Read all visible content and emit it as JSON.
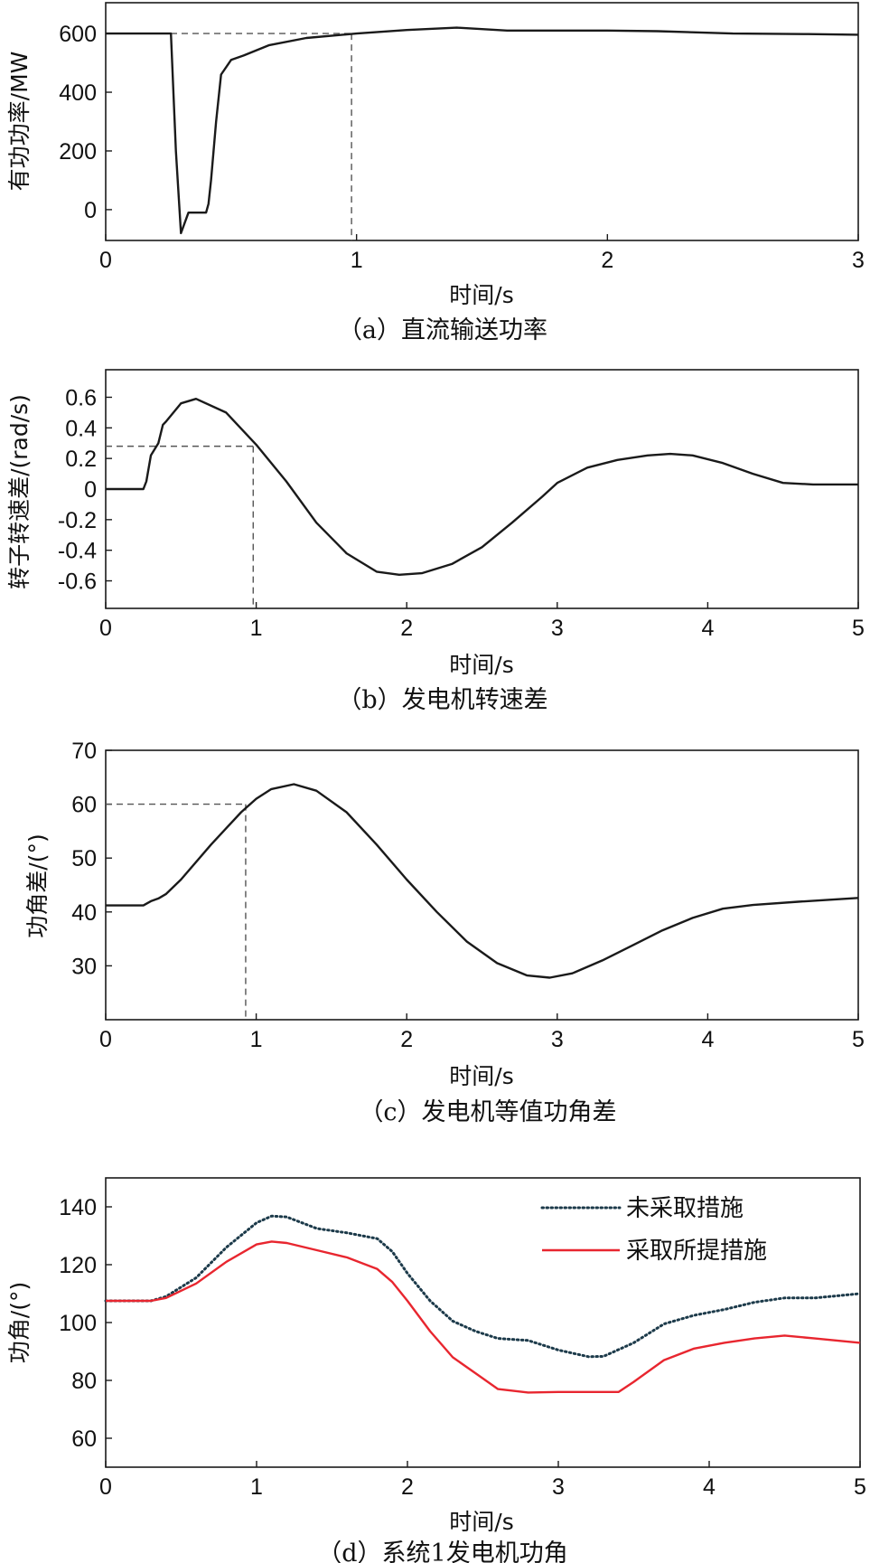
{
  "chart_data": [
    {
      "type": "line",
      "caption": "（a）直流输送功率",
      "xlabel": "时间/s",
      "ylabel": "有功功率/MW",
      "xlim": [
        0,
        3
      ],
      "ylim": [
        -105,
        705
      ],
      "xticks": [
        0,
        1,
        2,
        3
      ],
      "yticks": [
        0,
        200,
        400,
        600
      ],
      "xtick_labels": [
        "0",
        "1",
        "2",
        "3"
      ],
      "ytick_labels": [
        "0",
        "200",
        "400",
        "600"
      ],
      "series": [
        {
          "name": "",
          "color": "#1a1a1a",
          "style": "solid",
          "x": [
            0,
            0.26,
            0.28,
            0.3,
            0.33,
            0.4,
            0.41,
            0.42,
            0.44,
            0.46,
            0.5,
            0.55,
            0.65,
            0.8,
            1.0,
            1.2,
            1.4,
            1.6,
            1.8,
            2.0,
            2.2,
            2.5,
            2.8,
            3.0
          ],
          "y": [
            600,
            600,
            200,
            -80,
            -10,
            -10,
            20,
            100,
            300,
            460,
            510,
            525,
            560,
            585,
            600,
            612,
            620,
            610,
            610,
            610,
            608,
            600,
            598,
            596
          ]
        }
      ],
      "reference": {
        "x": 0.98,
        "y": 600
      }
    },
    {
      "type": "line",
      "caption": "（b）发电机转速差",
      "xlabel": "时间/s",
      "ylabel": "转子转速差/(rad/s)",
      "xlim": [
        0,
        5
      ],
      "ylim": [
        -0.78,
        0.78
      ],
      "xticks": [
        0,
        1,
        2,
        3,
        4,
        5
      ],
      "yticks": [
        -0.6,
        -0.4,
        -0.2,
        0,
        0.2,
        0.4,
        0.6
      ],
      "xtick_labels": [
        "0",
        "1",
        "2",
        "3",
        "4",
        "5"
      ],
      "ytick_labels": [
        "-0.6",
        "-0.4",
        "-0.2",
        "0",
        "0.2",
        "0.4",
        "0.6"
      ],
      "series": [
        {
          "name": "",
          "color": "#1a1a1a",
          "style": "solid",
          "x": [
            0,
            0.25,
            0.27,
            0.3,
            0.35,
            0.38,
            0.4,
            0.5,
            0.6,
            0.8,
            1.0,
            1.2,
            1.4,
            1.6,
            1.8,
            1.95,
            2.1,
            2.3,
            2.5,
            2.7,
            2.9,
            3.0,
            3.2,
            3.4,
            3.6,
            3.75,
            3.9,
            4.1,
            4.3,
            4.5,
            4.7,
            5.0
          ],
          "y": [
            0.0,
            0.0,
            0.05,
            0.22,
            0.3,
            0.42,
            0.44,
            0.56,
            0.59,
            0.5,
            0.29,
            0.05,
            -0.22,
            -0.42,
            -0.54,
            -0.56,
            -0.55,
            -0.49,
            -0.38,
            -0.22,
            -0.05,
            0.04,
            0.14,
            0.19,
            0.22,
            0.23,
            0.22,
            0.17,
            0.1,
            0.04,
            0.03,
            0.03
          ]
        }
      ],
      "reference": {
        "x": 0.98,
        "y": 0.28
      }
    },
    {
      "type": "line",
      "caption": "（c）发电机等值功角差",
      "xlabel": "时间/s",
      "ylabel": "功角差/(°)",
      "xlim": [
        0,
        5
      ],
      "ylim": [
        20,
        70
      ],
      "xticks": [
        0,
        1,
        2,
        3,
        4,
        5
      ],
      "yticks": [
        30,
        40,
        50,
        60,
        70
      ],
      "xtick_labels": [
        "0",
        "1",
        "2",
        "3",
        "4",
        "5"
      ],
      "ytick_labels": [
        "30",
        "40",
        "50",
        "60",
        "70"
      ],
      "series": [
        {
          "name": "",
          "color": "#1a1a1a",
          "style": "solid",
          "x": [
            0,
            0.25,
            0.3,
            0.35,
            0.4,
            0.5,
            0.7,
            0.9,
            1.0,
            1.1,
            1.25,
            1.4,
            1.6,
            1.8,
            2.0,
            2.2,
            2.4,
            2.6,
            2.8,
            2.95,
            3.1,
            3.3,
            3.5,
            3.7,
            3.9,
            4.1,
            4.3,
            4.6,
            5.0
          ],
          "y": [
            41.2,
            41.2,
            42.0,
            42.5,
            43.3,
            46.0,
            52.5,
            58.5,
            61.0,
            62.8,
            63.7,
            62.5,
            58.5,
            52.5,
            46.0,
            40.0,
            34.5,
            30.5,
            28.2,
            27.8,
            28.6,
            31.0,
            33.8,
            36.6,
            38.9,
            40.6,
            41.3,
            41.9,
            42.6
          ]
        }
      ],
      "reference": {
        "x": 0.93,
        "y": 60
      }
    },
    {
      "type": "line",
      "caption": "（d）系统1发电机功角",
      "xlabel": "时间/s",
      "ylabel": "功角/(°)",
      "xlim": [
        0,
        5
      ],
      "ylim": [
        50,
        150
      ],
      "xticks": [
        0,
        1,
        2,
        3,
        4,
        5
      ],
      "yticks": [
        60,
        80,
        100,
        120,
        140
      ],
      "xtick_labels": [
        "0",
        "1",
        "2",
        "3",
        "4",
        "5"
      ],
      "ytick_labels": [
        "60",
        "80",
        "100",
        "120",
        "140"
      ],
      "legend": [
        "未采取措施",
        "采取所提措施"
      ],
      "series": [
        {
          "name": "未采取措施",
          "color": "#1c3a4a",
          "style": "dotted",
          "x": [
            0,
            0.3,
            0.4,
            0.6,
            0.8,
            1.0,
            1.1,
            1.2,
            1.4,
            1.6,
            1.8,
            1.9,
            2.0,
            2.15,
            2.3,
            2.45,
            2.6,
            2.8,
            3.0,
            3.2,
            3.3,
            3.5,
            3.7,
            3.9,
            4.1,
            4.3,
            4.5,
            4.7,
            5.0
          ],
          "y": [
            107.5,
            107.5,
            109.0,
            115.5,
            126.0,
            134.5,
            136.8,
            136.5,
            132.5,
            131.0,
            129.0,
            124.5,
            117.0,
            107.5,
            100.5,
            97.0,
            94.5,
            93.8,
            90.5,
            88.2,
            88.3,
            93.0,
            99.5,
            102.5,
            104.5,
            107.0,
            108.5,
            108.5,
            110.0
          ]
        },
        {
          "name": "采取所提措施",
          "color": "#e8262f",
          "style": "solid",
          "x": [
            0,
            0.3,
            0.4,
            0.6,
            0.8,
            1.0,
            1.1,
            1.2,
            1.4,
            1.6,
            1.8,
            1.9,
            2.0,
            2.15,
            2.3,
            2.45,
            2.6,
            2.8,
            3.0,
            3.2,
            3.4,
            3.5,
            3.7,
            3.9,
            4.1,
            4.3,
            4.5,
            4.7,
            5.0
          ],
          "y": [
            107.5,
            107.5,
            108.5,
            113.5,
            121.0,
            127.0,
            128.0,
            127.5,
            125.0,
            122.5,
            118.5,
            114.0,
            107.5,
            97.0,
            88.0,
            82.5,
            77.0,
            75.8,
            76.0,
            76.0,
            76.0,
            79.5,
            87.0,
            91.0,
            93.0,
            94.5,
            95.5,
            94.5,
            93.0
          ]
        }
      ]
    }
  ]
}
